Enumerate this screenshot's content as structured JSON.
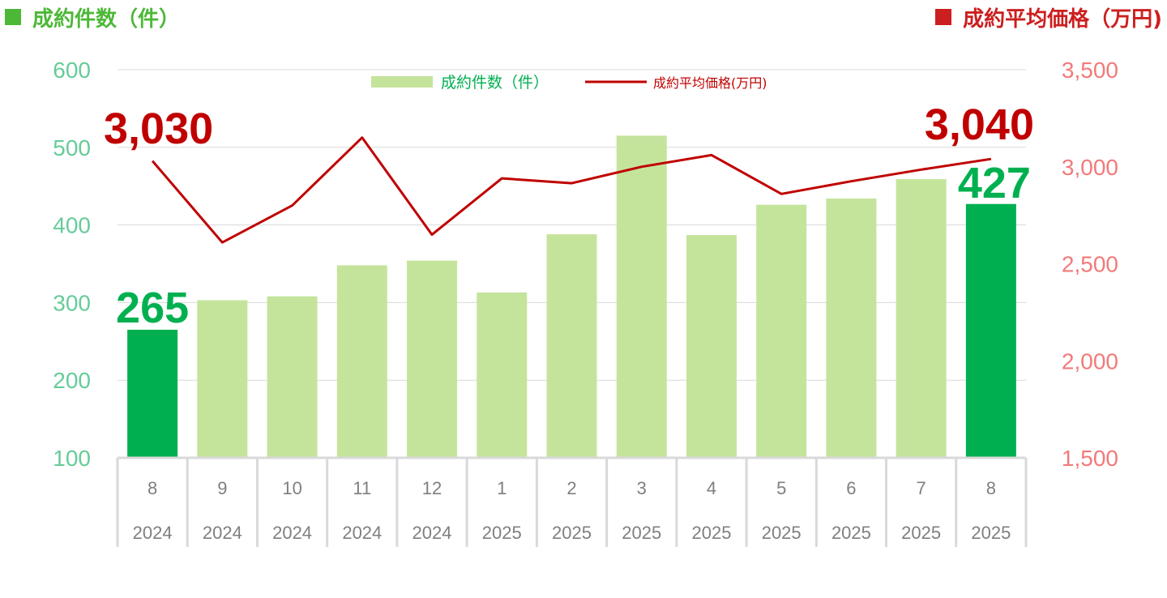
{
  "header": {
    "left_title": "成約件数（件）",
    "right_title": "成約平均価格（万円)"
  },
  "colors": {
    "count_green": "#4db838",
    "price_red": "#cc1f1f",
    "bar_light": "#c4e49c",
    "bar_highlight": "#00b050",
    "line": "#c00000",
    "left_axis_text": "#66cc99",
    "right_axis_text": "#f27a7a",
    "callout_red": "#c00000",
    "callout_green": "#00b050"
  },
  "chart_data": {
    "type": "bar",
    "categories": [
      "8",
      "9",
      "10",
      "11",
      "12",
      "1",
      "2",
      "3",
      "4",
      "5",
      "6",
      "7",
      "8"
    ],
    "years": [
      "2024",
      "2024",
      "2024",
      "2024",
      "2024",
      "2025",
      "2025",
      "2025",
      "2025",
      "2025",
      "2025",
      "2025",
      "2025"
    ],
    "series": [
      {
        "name": "成約件数（件）",
        "type": "bar",
        "axis": "left",
        "values": [
          265,
          303,
          308,
          348,
          354,
          313,
          388,
          515,
          387,
          426,
          434,
          459,
          427
        ],
        "highlight_indices": [
          0,
          12
        ]
      },
      {
        "name": "成約平均価格(万円)",
        "type": "line",
        "axis": "right",
        "values": [
          3030,
          2610,
          2800,
          3150,
          2650,
          2940,
          2915,
          3000,
          3060,
          2860,
          2925,
          2985,
          3040
        ]
      }
    ],
    "y_left": {
      "min": 100,
      "max": 600,
      "ticks": [
        "100",
        "200",
        "300",
        "400",
        "500",
        "600"
      ]
    },
    "y_right": {
      "min": 1500,
      "max": 3500,
      "ticks": [
        "1,500",
        "2,000",
        "2,500",
        "3,000",
        "3,500"
      ]
    },
    "callouts": {
      "first_price": "3,030",
      "last_price": "3,040",
      "first_count": "265",
      "last_count": "427"
    },
    "legend": {
      "placement": "top-center",
      "bar_label": "成約件数（件）",
      "line_label": "成約平均価格(万円)"
    },
    "grid": true
  }
}
